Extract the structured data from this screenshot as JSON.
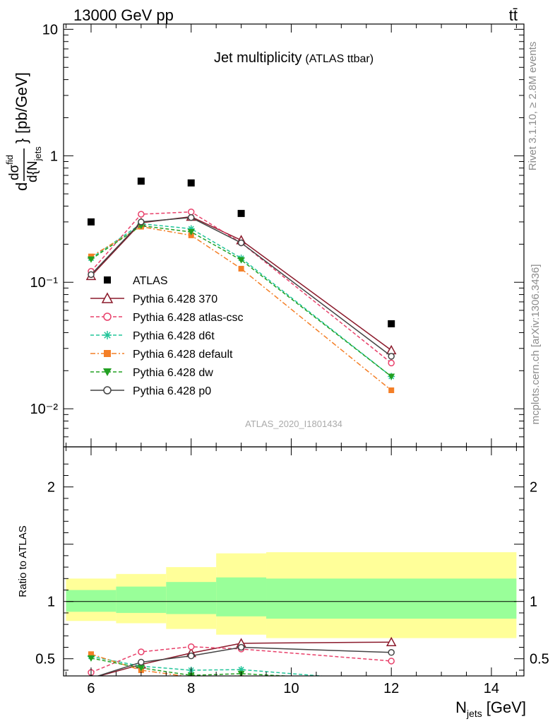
{
  "header": {
    "left": "13000 GeV pp",
    "right": "tt̄"
  },
  "side": {
    "rivet": "Rivet 3.1.10, ≥ 2.8M events",
    "mcplots": "mcplots.cern.ch [arXiv:1306.3436]"
  },
  "chart_data": [
    {
      "type": "line",
      "title": "Jet multiplicity",
      "subtitle": "(ATLAS ttbar)",
      "watermark": "ATLAS_2020_I1801434",
      "yscale": "log",
      "xlim": [
        5.45,
        14.65
      ],
      "ylim": [
        0.005,
        11
      ],
      "y_tick_labels": [
        "10",
        "1",
        "10⁻¹",
        "10⁻²"
      ],
      "ylabel_parts": {
        "d": "d",
        "num": "dσ",
        "num_sup": "fid",
        "den": "d{N",
        "den_sub": "jets",
        "close": "}",
        "units": "[pb/GeV]"
      },
      "legend_position": "lower-left",
      "data": {
        "name": "ATLAS",
        "x": [
          6,
          7,
          8,
          9,
          12
        ],
        "y": [
          0.3,
          0.63,
          0.61,
          0.35,
          0.047
        ],
        "color": "#000000"
      },
      "series": [
        {
          "name": "Pythia 6.428 370",
          "color": "#8b1a2b",
          "marker": "triangle-open",
          "dash": "solid",
          "x": [
            6,
            7,
            8,
            9,
            12
          ],
          "y": [
            0.112,
            0.295,
            0.33,
            0.215,
            0.029
          ]
        },
        {
          "name": "Pythia 6.428 atlas-csc",
          "color": "#e8406a",
          "marker": "circle-open",
          "dash": "dashed",
          "x": [
            6,
            7,
            8,
            9,
            12
          ],
          "y": [
            0.122,
            0.345,
            0.36,
            0.205,
            0.023
          ]
        },
        {
          "name": "Pythia 6.428 d6t",
          "color": "#22c59a",
          "marker": "star",
          "dash": "dashed",
          "x": [
            6,
            7,
            8,
            9,
            12
          ],
          "y": [
            0.155,
            0.29,
            0.265,
            0.155,
            0.018
          ]
        },
        {
          "name": "Pythia 6.428 default",
          "color": "#f47f27",
          "marker": "square",
          "dash": "dashdot",
          "x": [
            6,
            7,
            8,
            9,
            12
          ],
          "y": [
            0.16,
            0.275,
            0.235,
            0.128,
            0.014
          ]
        },
        {
          "name": "Pythia 6.428 dw",
          "color": "#22a022",
          "marker": "triangle-down",
          "dash": "dashed",
          "x": [
            6,
            7,
            8,
            9,
            12
          ],
          "y": [
            0.152,
            0.28,
            0.25,
            0.15,
            0.018
          ]
        },
        {
          "name": "Pythia 6.428 p0",
          "color": "#444444",
          "marker": "circle-open",
          "dash": "solid",
          "x": [
            6,
            7,
            8,
            9,
            12
          ],
          "y": [
            0.115,
            0.3,
            0.325,
            0.205,
            0.026
          ]
        }
      ]
    },
    {
      "type": "line",
      "ylabel": "Ratio to ATLAS",
      "xlabel": "N_jets [GeV]",
      "xlabel_main": "N",
      "xlabel_sub": "jets",
      "xlabel_units": "[GeV]",
      "xlim": [
        5.45,
        14.65
      ],
      "ylim": [
        0.35,
        2.35
      ],
      "x_ticks": [
        6,
        8,
        10,
        12,
        14
      ],
      "x_tick_labels": [
        "6",
        "8",
        "10",
        "12",
        "14"
      ],
      "y_ticks": [
        0.5,
        1,
        2
      ],
      "y_tick_labels": [
        "0.5",
        "1",
        "2"
      ],
      "bands": [
        {
          "x0": 5.5,
          "x1": 6.5,
          "yellow": [
            0.83,
            1.2
          ],
          "green": [
            0.91,
            1.1
          ]
        },
        {
          "x0": 6.5,
          "x1": 7.5,
          "yellow": [
            0.81,
            1.24
          ],
          "green": [
            0.9,
            1.13
          ]
        },
        {
          "x0": 7.5,
          "x1": 8.5,
          "yellow": [
            0.76,
            1.3
          ],
          "green": [
            0.89,
            1.17
          ]
        },
        {
          "x0": 8.5,
          "x1": 9.5,
          "yellow": [
            0.71,
            1.42
          ],
          "green": [
            0.87,
            1.21
          ]
        },
        {
          "x0": 9.5,
          "x1": 14.5,
          "yellow": [
            0.68,
            1.43
          ],
          "green": [
            0.85,
            1.2
          ]
        }
      ],
      "series": [
        {
          "name": "Pythia 6.428 370",
          "x": [
            6,
            7,
            8,
            9,
            12
          ],
          "y": [
            0.33,
            0.45,
            0.55,
            0.635,
            0.645
          ]
        },
        {
          "name": "Pythia 6.428 atlas-csc",
          "x": [
            6,
            7,
            8,
            9,
            12
          ],
          "y": [
            0.38,
            0.56,
            0.605,
            0.585,
            0.48
          ]
        },
        {
          "name": "Pythia 6.428 d6t",
          "x": [
            6,
            7,
            8,
            9,
            12
          ],
          "y": [
            0.52,
            0.435,
            0.4,
            0.405,
            0.3
          ]
        },
        {
          "name": "Pythia 6.428 default",
          "x": [
            6,
            7,
            8,
            9,
            12
          ],
          "y": [
            0.54,
            0.4,
            0.34,
            0.33,
            0.3
          ]
        },
        {
          "name": "Pythia 6.428 dw",
          "x": [
            6,
            7,
            8,
            9,
            12
          ],
          "y": [
            0.505,
            0.42,
            0.355,
            0.37,
            0.3
          ]
        },
        {
          "name": "Pythia 6.428 p0",
          "x": [
            6,
            7,
            8,
            9,
            12
          ],
          "y": [
            0.33,
            0.47,
            0.525,
            0.6,
            0.555
          ]
        }
      ]
    }
  ]
}
